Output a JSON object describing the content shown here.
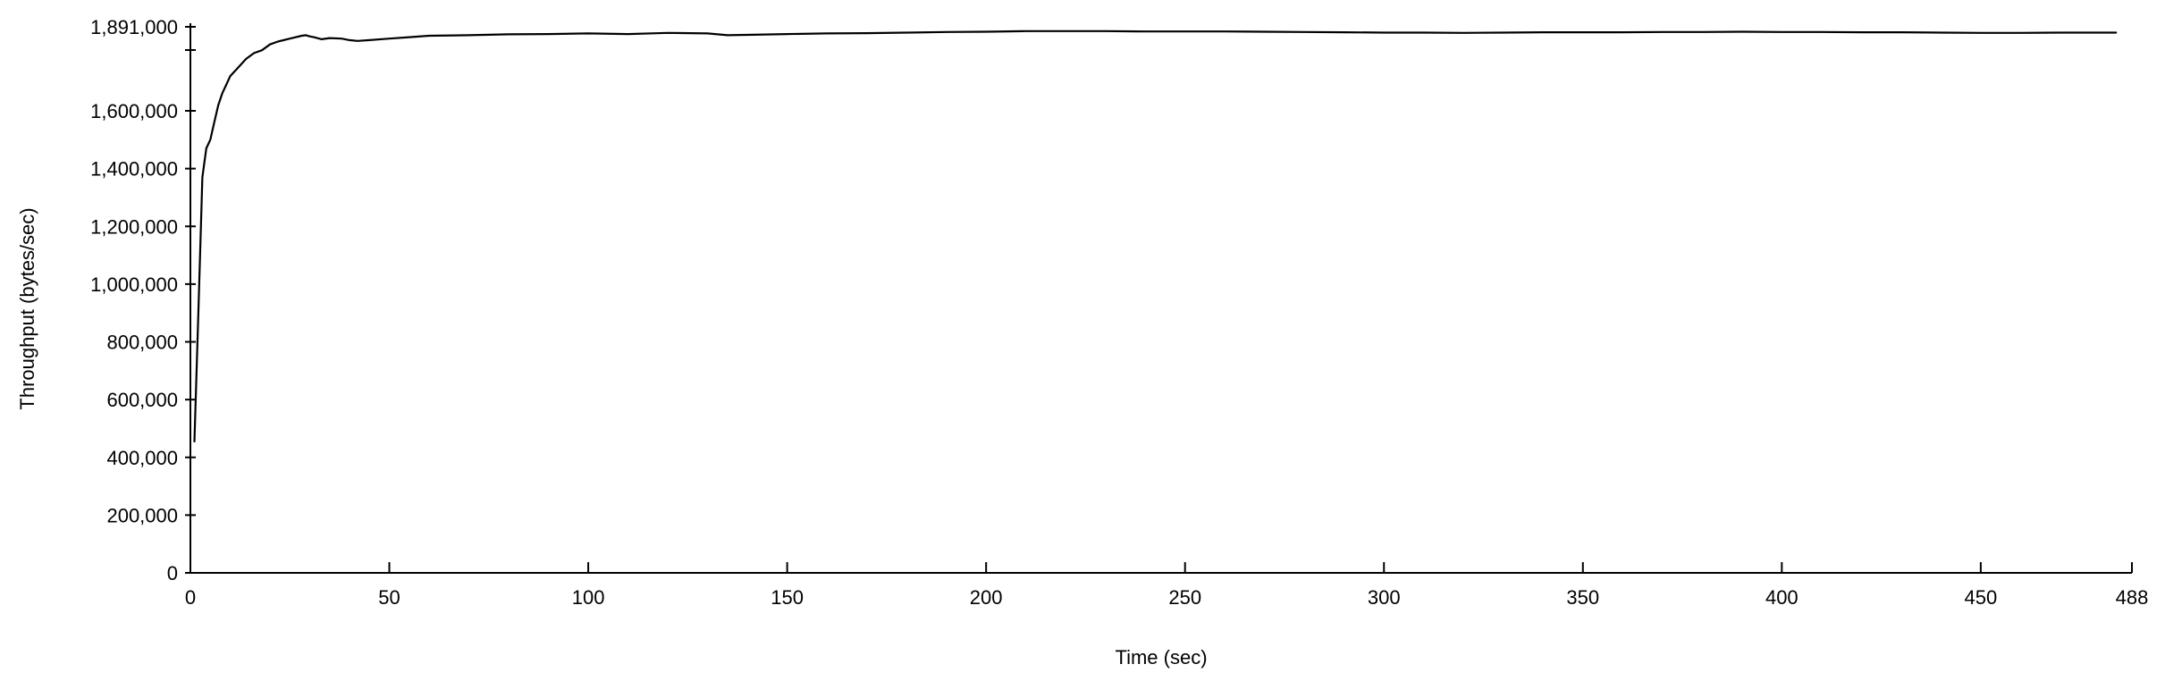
{
  "chart_data": {
    "type": "line",
    "title": "",
    "xlabel": "Time (sec)",
    "ylabel": "Throughput (bytes/sec)",
    "xlim": [
      0,
      488
    ],
    "ylim": [
      0,
      1891000
    ],
    "x_ticks": [
      0,
      50,
      100,
      150,
      200,
      250,
      300,
      350,
      400,
      450,
      488
    ],
    "x_tick_labels": [
      "0",
      "50",
      "100",
      "150",
      "200",
      "250",
      "300",
      "350",
      "400",
      "450",
      "488"
    ],
    "y_ticks": [
      0,
      200000,
      400000,
      600000,
      800000,
      1000000,
      1200000,
      1400000,
      1600000,
      1891000
    ],
    "y_tick_labels": [
      "0",
      "200,000",
      "400,000",
      "600,000",
      "800,000",
      "1,000,000",
      "1,200,000",
      "1,400,000",
      "1,600,000",
      "1,891,000"
    ],
    "grid": false,
    "line_color": "#000000",
    "series": [
      {
        "x": [
          1,
          2,
          3,
          4,
          5,
          6,
          7,
          8,
          10,
          12,
          14,
          16,
          18,
          20,
          22,
          25,
          28,
          29,
          30,
          31,
          33,
          35,
          38,
          40,
          42,
          45,
          50,
          55,
          60,
          70,
          80,
          90,
          100,
          110,
          120,
          130,
          135,
          140,
          150,
          160,
          170,
          180,
          190,
          200,
          210,
          220,
          230,
          240,
          250,
          260,
          270,
          280,
          290,
          300,
          310,
          320,
          330,
          340,
          350,
          360,
          370,
          380,
          390,
          400,
          410,
          420,
          430,
          440,
          450,
          460,
          470,
          480,
          484
        ],
        "y": [
          455000,
          900000,
          1370000,
          1470000,
          1500000,
          1560000,
          1620000,
          1660000,
          1720000,
          1750000,
          1780000,
          1800000,
          1810000,
          1830000,
          1840000,
          1850000,
          1860000,
          1862000,
          1858000,
          1855000,
          1848000,
          1852000,
          1850000,
          1845000,
          1842000,
          1845000,
          1850000,
          1855000,
          1860000,
          1862000,
          1865000,
          1866000,
          1868000,
          1866000,
          1870000,
          1868000,
          1862000,
          1863000,
          1866000,
          1868000,
          1869000,
          1871000,
          1873000,
          1874000,
          1876000,
          1876000,
          1876000,
          1875000,
          1875000,
          1875000,
          1874000,
          1873000,
          1872000,
          1871000,
          1871000,
          1870000,
          1871000,
          1872000,
          1872000,
          1872000,
          1873000,
          1873000,
          1874000,
          1873000,
          1873000,
          1872000,
          1872000,
          1871000,
          1870000,
          1870000,
          1871000,
          1871000,
          1871000
        ]
      }
    ]
  }
}
